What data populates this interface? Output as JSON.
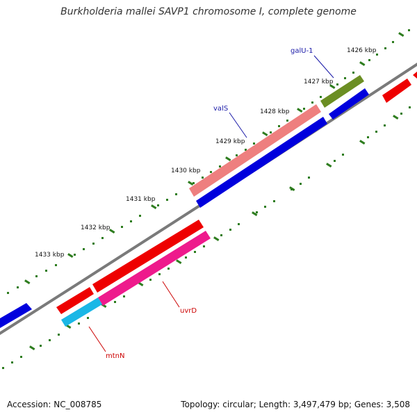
{
  "title": "Burkholderia mallei SAVP1 chromosome I, complete genome",
  "footer": {
    "accession_label": "Accession:",
    "accession": "NC_008785",
    "topology_label": "Topology:",
    "topology": "circular",
    "length_label": "Length:",
    "length": "3,497,479 bp",
    "genes_label": "Genes:",
    "genes": "3,508"
  },
  "kbp_ticks": [
    {
      "position_kbp": 1426,
      "label": "1426 kbp"
    },
    {
      "position_kbp": 1427,
      "label": "1427 kbp"
    },
    {
      "position_kbp": 1428,
      "label": "1428 kbp"
    },
    {
      "position_kbp": 1429,
      "label": "1429 kbp"
    },
    {
      "position_kbp": 1430,
      "label": "1430 kbp"
    },
    {
      "position_kbp": 1431,
      "label": "1431 kbp"
    },
    {
      "position_kbp": 1432,
      "label": "1432 kbp"
    },
    {
      "position_kbp": 1433,
      "label": "1433 kbp"
    }
  ],
  "gene_labels": [
    {
      "name": "galU-1",
      "color": "#1a1aa8"
    },
    {
      "name": "valS",
      "color": "#1a1aa8"
    },
    {
      "name": "uvrD",
      "color": "#cc0000"
    },
    {
      "name": "mtnN",
      "color": "#cc0000"
    }
  ],
  "colors": {
    "backbone": "#7a7a7a",
    "tick_marks": "#2e7d1f",
    "cds_red": "#ee0000",
    "cds_blue": "#0000dd",
    "cds_salmon": "#ee7f7f",
    "cds_olive": "#6b8e23",
    "cds_magenta": "#ee1a8c",
    "cds_cyan": "#1ab7e6"
  }
}
